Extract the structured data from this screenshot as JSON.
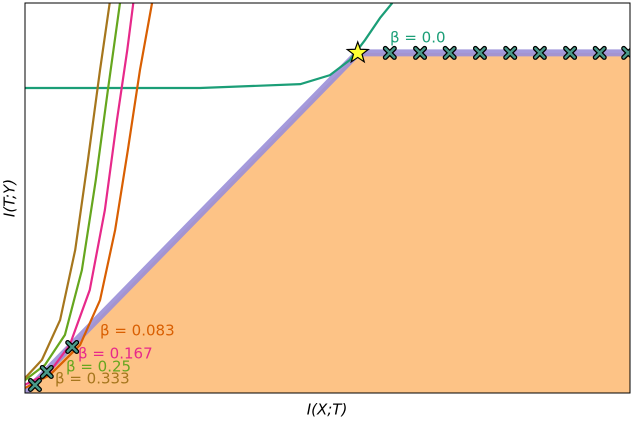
{
  "chart_data": {
    "type": "line",
    "x_label": "I(X;T)",
    "y_label": "I(T;Y)",
    "xlim": [
      0,
      1
    ],
    "ylim": [
      0,
      1
    ],
    "region": {
      "color": "#fdc386",
      "x": [
        0,
        0.55,
        1,
        1
      ],
      "y": [
        0,
        0.872,
        0.872,
        0
      ]
    },
    "boundary": {
      "color": "#9a8fd8",
      "x": [
        0,
        0.55,
        1
      ],
      "y": [
        0,
        0.872,
        0.872
      ]
    },
    "series": [
      {
        "name": "β = 0.0",
        "color": "#1b9e77",
        "x": [
          0,
          0.289,
          0.455,
          0.504,
          0.537,
          0.562,
          0.587,
          0.607
        ],
        "y": [
          0.782,
          0.782,
          0.792,
          0.815,
          0.854,
          0.905,
          0.962,
          1.0
        ]
      },
      {
        "name": "β = 0.083",
        "color": "#d95f02",
        "x": [
          0,
          0.041,
          0.091,
          0.124,
          0.149,
          0.17,
          0.19,
          0.21
        ],
        "y": [
          0.013,
          0.046,
          0.123,
          0.238,
          0.418,
          0.623,
          0.828,
          1.0
        ]
      },
      {
        "name": "β = 0.167",
        "color": "#e7298a",
        "x": [
          0,
          0.041,
          0.074,
          0.107,
          0.132,
          0.152,
          0.169,
          0.179
        ],
        "y": [
          0.021,
          0.054,
          0.123,
          0.264,
          0.469,
          0.7,
          0.879,
          1.0
        ]
      },
      {
        "name": "β = 0.25",
        "color": "#66a61e",
        "x": [
          0,
          0.033,
          0.066,
          0.094,
          0.117,
          0.137,
          0.157
        ],
        "y": [
          0.033,
          0.072,
          0.149,
          0.315,
          0.546,
          0.777,
          1.0
        ]
      },
      {
        "name": "β = 0.333",
        "color": "#a6761d",
        "x": [
          0,
          0.028,
          0.058,
          0.083,
          0.104,
          0.124,
          0.14
        ],
        "y": [
          0.038,
          0.085,
          0.187,
          0.367,
          0.597,
          0.828,
          1.0
        ]
      }
    ],
    "markers": {
      "color": "#4a9a8a",
      "x": [
        0.0165,
        0.036,
        0.078,
        0.603,
        0.653,
        0.702,
        0.752,
        0.802,
        0.851,
        0.901,
        0.95,
        0.997
      ],
      "y": [
        0.0205,
        0.054,
        0.118,
        0.872,
        0.872,
        0.872,
        0.872,
        0.872,
        0.872,
        0.872,
        0.872,
        0.872
      ]
    },
    "star": {
      "color": "#ffff33",
      "x": 0.55,
      "y": 0.872
    }
  }
}
